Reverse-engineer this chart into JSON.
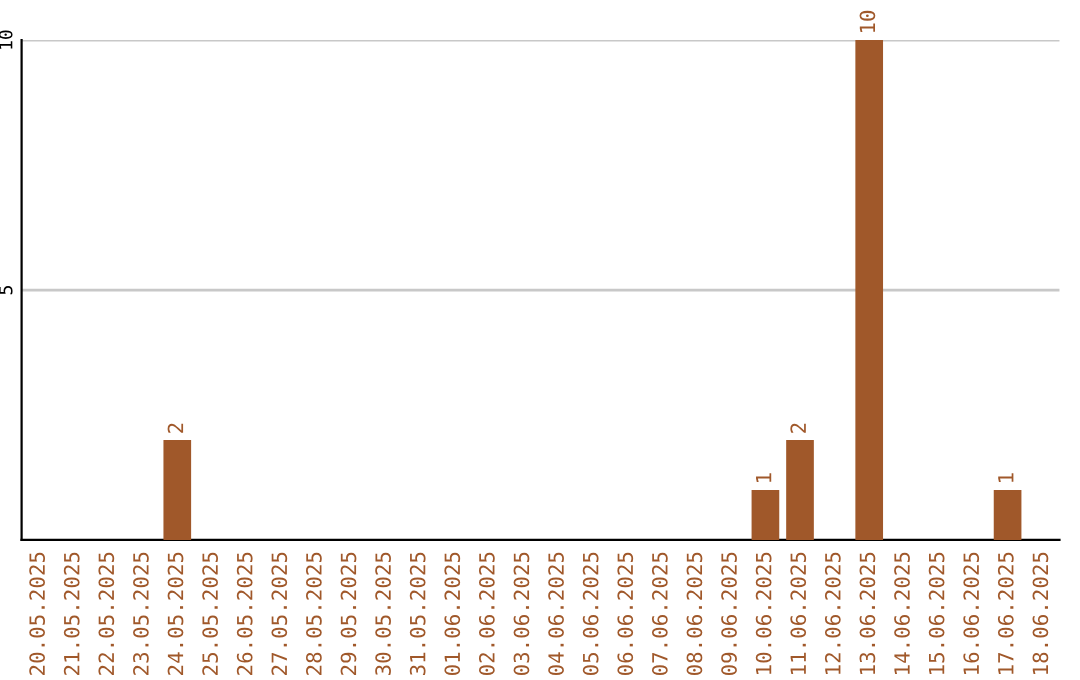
{
  "chart_data": {
    "type": "bar",
    "categories": [
      "20.05.2025",
      "21.05.2025",
      "22.05.2025",
      "23.05.2025",
      "24.05.2025",
      "25.05.2025",
      "26.05.2025",
      "27.05.2025",
      "28.05.2025",
      "29.05.2025",
      "30.05.2025",
      "31.05.2025",
      "01.06.2025",
      "02.06.2025",
      "03.06.2025",
      "04.06.2025",
      "05.06.2025",
      "06.06.2025",
      "07.06.2025",
      "08.06.2025",
      "09.06.2025",
      "10.06.2025",
      "11.06.2025",
      "12.06.2025",
      "13.06.2025",
      "14.06.2025",
      "15.06.2025",
      "16.06.2025",
      "17.06.2025",
      "18.06.2025"
    ],
    "values": [
      0,
      0,
      0,
      0,
      2,
      0,
      0,
      0,
      0,
      0,
      0,
      0,
      0,
      0,
      0,
      0,
      0,
      0,
      0,
      0,
      0,
      1,
      2,
      0,
      10,
      0,
      0,
      0,
      1,
      0
    ],
    "value_labels": [
      null,
      null,
      null,
      null,
      "2",
      null,
      null,
      null,
      null,
      null,
      null,
      null,
      null,
      null,
      null,
      null,
      null,
      null,
      null,
      null,
      null,
      "1",
      "2",
      null,
      "10",
      null,
      null,
      null,
      "1",
      null
    ],
    "color": "#a0582a",
    "ylim": [
      0,
      10
    ],
    "yticks": [
      5,
      10
    ],
    "grid": "y",
    "legend": false
  }
}
